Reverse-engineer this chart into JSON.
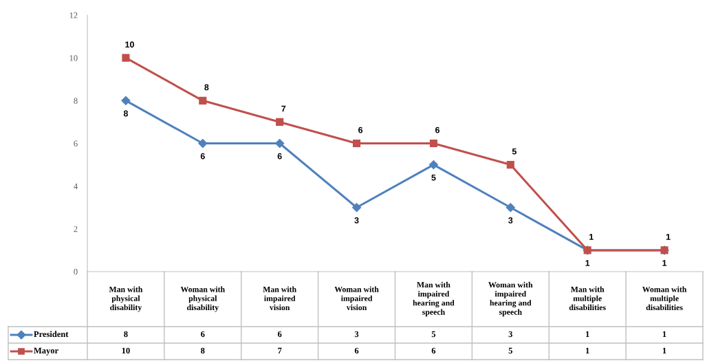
{
  "chart_data": {
    "type": "line",
    "categories": [
      "Man with physical disability",
      "Woman with physical disability",
      "Man with impaired vision",
      "Woman with impaired vision",
      "Man with impaired hearing and speech",
      "Woman with impaired hearing and speech",
      "Man with multiple disabilities",
      "Woman with multiple disabilities"
    ],
    "series": [
      {
        "name": "President",
        "color": "#4f81bd",
        "marker": "diamond",
        "values": [
          8,
          6,
          6,
          3,
          5,
          3,
          1,
          1
        ]
      },
      {
        "name": "Mayor",
        "color": "#c0504d",
        "marker": "square",
        "values": [
          10,
          8,
          7,
          6,
          6,
          5,
          1,
          1
        ]
      }
    ],
    "ylim": [
      0,
      12
    ],
    "yticks": [
      0,
      2,
      4,
      6,
      8,
      10,
      12
    ],
    "grid": false,
    "legend": "bottom left",
    "data_labels": true,
    "line_style": "solid",
    "annotations": [
      {
        "text": "8",
        "x": "Man with physical disability",
        "y": 8
      },
      {
        "text": "6",
        "x": "Woman with physical disability",
        "y": 6
      },
      {
        "text": "6",
        "x": "Man with impaired vision",
        "y": 6
      },
      {
        "text": "3",
        "x": "Woman with impaired vision",
        "y": 3
      },
      {
        "text": "5",
        "x": "Man with impaired hearing and speech",
        "y": 5
      },
      {
        "text": "3",
        "x": "Woman with impaired hearing and speech",
        "y": 3
      },
      {
        "text": "1",
        "x": "Man with multiple disabilities",
        "y": 1
      },
      {
        "text": "1",
        "x": "Woman with multiple disabilities",
        "y": 1
      },
      {
        "text": "10",
        "x": "Man with physical disability",
        "y": 10
      },
      {
        "text": "8",
        "x": "Woman with physical disability",
        "y": 8
      },
      {
        "text": "7",
        "x": "Man with impaired vision",
        "y": 7
      },
      {
        "text": "6",
        "x": "Woman with impaired vision",
        "y": 6
      },
      {
        "text": "6",
        "x": "Man with impaired hearing and speech",
        "y": 6
      },
      {
        "text": "5",
        "x": "Woman with impaired hearing and speech",
        "y": 5
      },
      {
        "text": "1",
        "x": "Man with multiple disabilities",
        "y": 1
      },
      {
        "text": "1",
        "x": "Woman with multiple disabilities",
        "y": 1
      }
    ]
  }
}
